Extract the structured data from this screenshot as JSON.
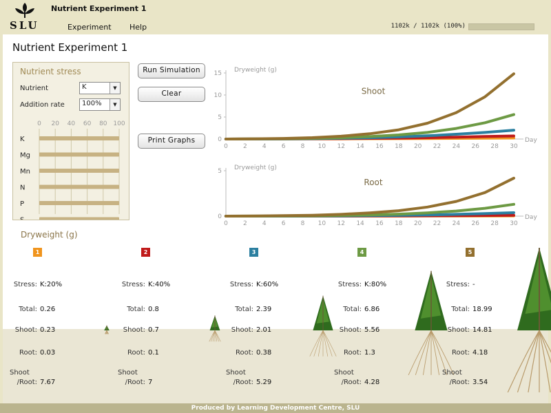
{
  "app": {
    "title": "Nutrient Experiment 1",
    "logo_text": "SLU"
  },
  "menu": {
    "items": [
      "Experiment",
      "Help"
    ]
  },
  "progress": {
    "text": "1102k / 1102k (100%)",
    "fraction": 1.0
  },
  "page": {
    "title": "Nutrient Experiment 1"
  },
  "stress_panel": {
    "title": "Nutrient stress",
    "nutrient_label": "Nutrient",
    "nutrient_value": "K",
    "addition_label": "Addition rate",
    "addition_value": "100%",
    "scale": [
      "0",
      "20",
      "40",
      "60",
      "80",
      "100"
    ],
    "nutrients": [
      "K",
      "Mg",
      "Mn",
      "N",
      "P",
      "S"
    ],
    "levels": [
      100,
      100,
      100,
      100,
      100,
      100
    ]
  },
  "buttons": {
    "run": "Run Simulation",
    "clear": "Clear",
    "print": "Print Graphs"
  },
  "chart_data": [
    {
      "type": "line",
      "title": "Shoot",
      "ylabel": "Dryweight (g)",
      "xlabel": "Day",
      "x_ticks": [
        0,
        2,
        4,
        6,
        8,
        10,
        12,
        14,
        16,
        18,
        20,
        22,
        24,
        26,
        28,
        30
      ],
      "y_ticks": [
        0,
        5,
        10,
        15
      ],
      "ylim": [
        0,
        15
      ],
      "xlim": [
        0,
        30
      ],
      "series": [
        {
          "color": "#f0941d",
          "values": [
            0,
            0.01,
            0.02,
            0.03,
            0.05,
            0.08,
            0.1,
            0.13,
            0.16,
            0.2,
            0.23
          ]
        },
        {
          "color": "#c01a1a",
          "values": [
            0,
            0.01,
            0.03,
            0.06,
            0.1,
            0.15,
            0.22,
            0.32,
            0.44,
            0.58,
            0.7
          ]
        },
        {
          "color": "#2b7fa0",
          "values": [
            0,
            0.02,
            0.05,
            0.1,
            0.18,
            0.3,
            0.48,
            0.74,
            1.1,
            1.5,
            2.01
          ]
        },
        {
          "color": "#6d9a44",
          "values": [
            0,
            0.03,
            0.08,
            0.17,
            0.32,
            0.56,
            0.94,
            1.5,
            2.4,
            3.7,
            5.56
          ]
        },
        {
          "color": "#93702f",
          "values": [
            0,
            0.05,
            0.14,
            0.32,
            0.64,
            1.2,
            2.1,
            3.6,
            6.0,
            9.6,
            14.81
          ]
        }
      ]
    },
    {
      "type": "line",
      "title": "Root",
      "ylabel": "Dryweight (g)",
      "xlabel": "Day",
      "x_ticks": [
        0,
        2,
        4,
        6,
        8,
        10,
        12,
        14,
        16,
        18,
        20,
        22,
        24,
        26,
        28,
        30
      ],
      "y_ticks": [
        0,
        5
      ],
      "ylim": [
        0,
        5
      ],
      "xlim": [
        0,
        30
      ],
      "series": [
        {
          "color": "#f0941d",
          "values": [
            0,
            0,
            0.001,
            0.002,
            0.004,
            0.006,
            0.01,
            0.014,
            0.019,
            0.025,
            0.03
          ]
        },
        {
          "color": "#c01a1a",
          "values": [
            0,
            0.001,
            0.003,
            0.006,
            0.01,
            0.017,
            0.027,
            0.04,
            0.056,
            0.077,
            0.1
          ]
        },
        {
          "color": "#2b7fa0",
          "values": [
            0,
            0.003,
            0.008,
            0.016,
            0.03,
            0.05,
            0.08,
            0.13,
            0.2,
            0.28,
            0.38
          ]
        },
        {
          "color": "#6d9a44",
          "values": [
            0,
            0.008,
            0.02,
            0.04,
            0.075,
            0.13,
            0.22,
            0.36,
            0.56,
            0.86,
            1.3
          ]
        },
        {
          "color": "#93702f",
          "values": [
            0,
            0.02,
            0.05,
            0.1,
            0.2,
            0.36,
            0.6,
            1.0,
            1.62,
            2.6,
            4.18
          ]
        }
      ]
    }
  ],
  "results": {
    "title": "Dryweight (g)",
    "labels": {
      "stress": "Stress:",
      "total": "Total:",
      "shoot": "Shoot:",
      "root": "Root:",
      "ratio_top": "Shoot",
      "ratio_bottom": "/Root:"
    },
    "columns": [
      {
        "num": "1",
        "color": "#f0941d",
        "stress": "K:20%",
        "total": "0.26",
        "shoot": "0.23",
        "root": "0.03",
        "ratio": "7.67",
        "plant_scale": 0.06
      },
      {
        "num": "2",
        "color": "#c01a1a",
        "stress": "K:40%",
        "total": "0.8",
        "shoot": "0.7",
        "root": "0.1",
        "ratio": "7",
        "plant_scale": 0.18
      },
      {
        "num": "3",
        "color": "#2b7fa0",
        "stress": "K:60%",
        "total": "2.39",
        "shoot": "2.01",
        "root": "0.38",
        "ratio": "5.29",
        "plant_scale": 0.42
      },
      {
        "num": "4",
        "color": "#6d9a44",
        "stress": "K:80%",
        "total": "6.86",
        "shoot": "5.56",
        "root": "1.3",
        "ratio": "4.28",
        "plant_scale": 0.72
      },
      {
        "num": "5",
        "color": "#93702f",
        "stress": "-",
        "total": "18.99",
        "shoot": "14.81",
        "root": "4.18",
        "ratio": "3.54",
        "plant_scale": 1.0
      }
    ]
  },
  "footer": {
    "text": "Produced by Learning Development Centre, SLU"
  }
}
